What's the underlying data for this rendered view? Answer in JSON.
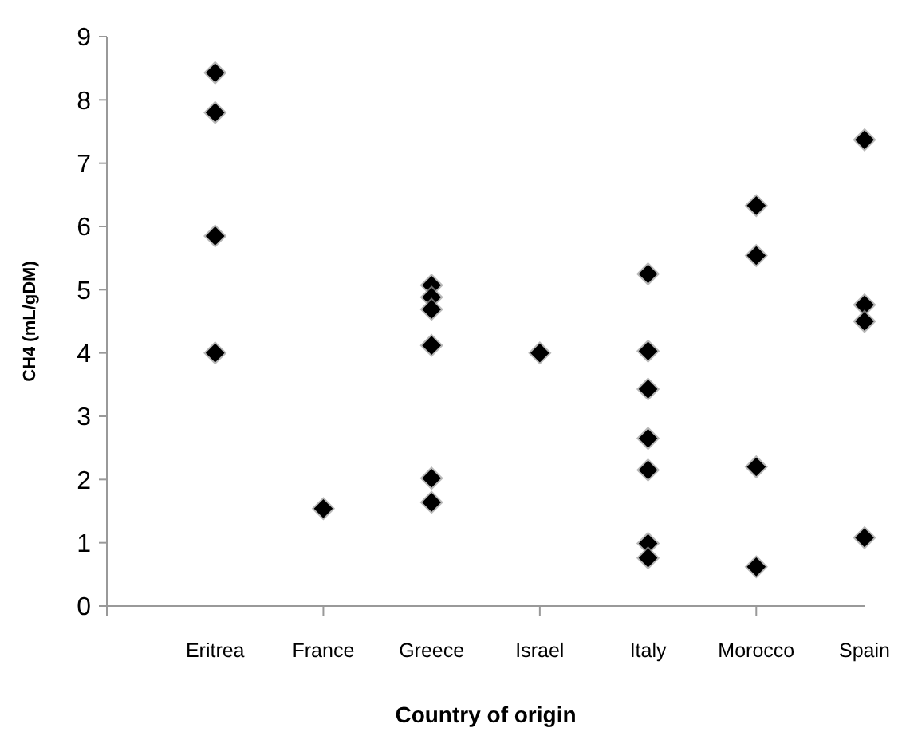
{
  "chart_data": {
    "type": "scatter",
    "xlabel": "Country of origin",
    "ylabel": "CH4 (mL/gDM)",
    "categories": [
      "Eritrea",
      "France",
      "Greece",
      "Israel",
      "Italy",
      "Morocco",
      "Spain"
    ],
    "series": [
      {
        "color": "#000000",
        "x": [
          "Eritrea",
          "Eritrea",
          "Eritrea",
          "Eritrea",
          "France",
          "Greece",
          "Greece",
          "Greece",
          "Greece",
          "Greece",
          "Greece",
          "Israel",
          "Italy",
          "Italy",
          "Italy",
          "Italy",
          "Italy",
          "Italy",
          "Italy",
          "Morocco",
          "Morocco",
          "Morocco",
          "Morocco",
          "Spain",
          "Spain",
          "Spain",
          "Spain"
        ],
        "values": [
          8.43,
          7.8,
          5.85,
          4.0,
          1.54,
          5.07,
          4.88,
          4.69,
          4.12,
          2.02,
          1.64,
          4.0,
          5.25,
          4.03,
          3.43,
          2.65,
          2.15,
          0.99,
          0.76,
          6.33,
          5.54,
          2.2,
          0.62,
          7.37,
          4.76,
          4.5,
          1.08
        ]
      }
    ],
    "ylim": [
      0,
      9
    ],
    "yticks": [
      0,
      1,
      2,
      3,
      4,
      5,
      6,
      7,
      8,
      9
    ],
    "grid": false,
    "marker": "diamond"
  }
}
